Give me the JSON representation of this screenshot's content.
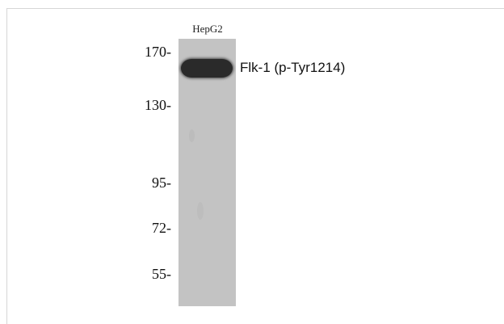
{
  "lane": {
    "label": "HepG2"
  },
  "band": {
    "label": "Flk-1 (p-Tyr1214)"
  },
  "markers": [
    "170-",
    "130-",
    "95-",
    "72-",
    "55-"
  ],
  "colors": {
    "lane_background": "#c3c3c3",
    "band": "#2a2a2a",
    "frame": "#d6d6d6"
  }
}
